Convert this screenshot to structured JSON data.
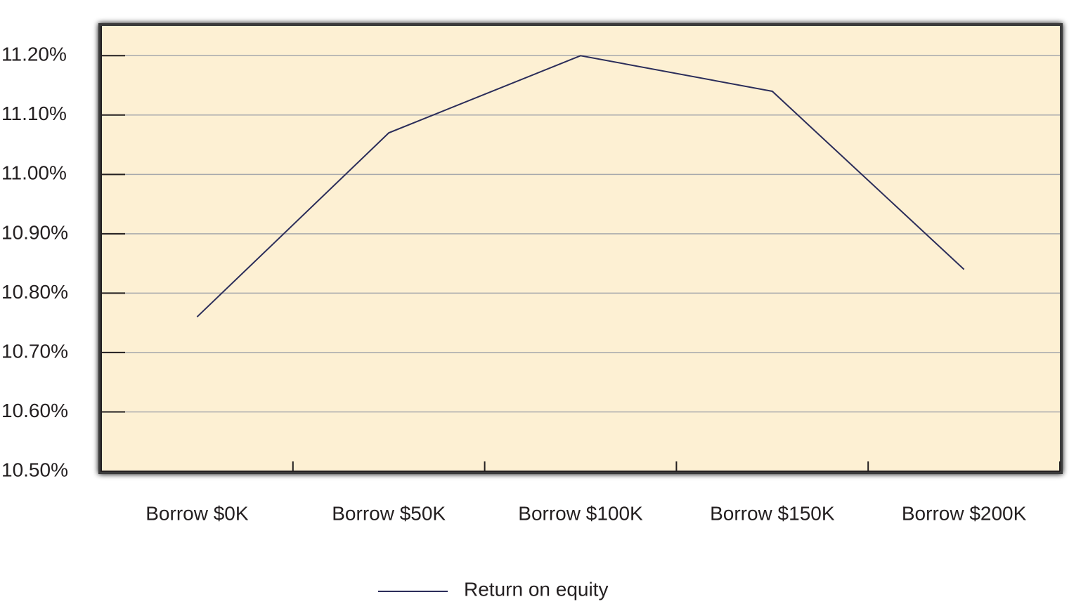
{
  "chart_data": {
    "type": "line",
    "categories": [
      "Borrow $0K",
      "Borrow $50K",
      "Borrow $100K",
      "Borrow $150K",
      "Borrow $200K"
    ],
    "series": [
      {
        "name": "Return on equity",
        "color": "#2b2d5a",
        "values": [
          10.76,
          11.07,
          11.2,
          11.14,
          10.84
        ]
      }
    ],
    "ylim": [
      10.5,
      11.25
    ],
    "yticks": [
      {
        "value": 10.5,
        "label": "10.50%"
      },
      {
        "value": 10.6,
        "label": "10.60%"
      },
      {
        "value": 10.7,
        "label": "10.70%"
      },
      {
        "value": 10.8,
        "label": "10.80%"
      },
      {
        "value": 10.9,
        "label": "10.90%"
      },
      {
        "value": 11.0,
        "label": "11.00%"
      },
      {
        "value": 11.1,
        "label": "11.10%"
      },
      {
        "value": 11.2,
        "label": "11.20%"
      }
    ],
    "grid": true,
    "legend": "bottom"
  }
}
